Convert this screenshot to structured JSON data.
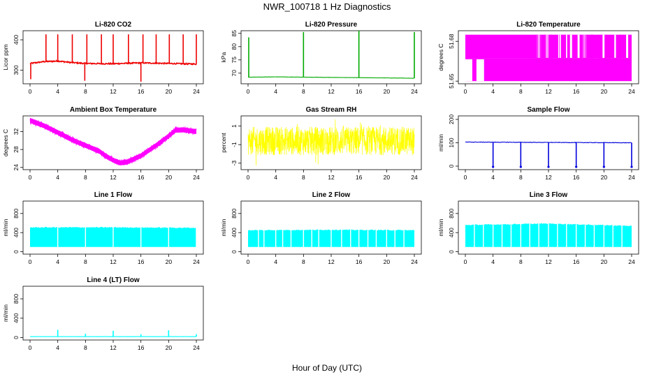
{
  "figure": {
    "title": "NWR_100718  1 Hz Diagnostics",
    "xlabel": "Hour of Day (UTC)"
  },
  "chart_data": [
    {
      "type": "line",
      "title": "Li-820 CO2",
      "ylabel": "Licor ppm",
      "color": "#ee0000",
      "xlim": [
        0,
        24
      ],
      "ylim": [
        255,
        430
      ],
      "xticks": [
        "0",
        "4",
        "8",
        "12",
        "16",
        "20",
        "24"
      ],
      "yticks": [
        "300",
        "400"
      ],
      "baseline": [
        [
          0,
          322
        ],
        [
          2,
          328
        ],
        [
          4,
          330
        ],
        [
          6,
          325
        ],
        [
          8,
          322
        ],
        [
          12,
          321
        ],
        [
          16,
          324
        ],
        [
          20,
          322
        ],
        [
          24,
          320
        ]
      ],
      "spikes": [
        [
          0.1,
          270
        ],
        [
          2.3,
          418
        ],
        [
          4.0,
          418
        ],
        [
          6.1,
          418
        ],
        [
          7.9,
          265
        ],
        [
          8.2,
          418
        ],
        [
          10.3,
          418
        ],
        [
          12.0,
          418
        ],
        [
          14.2,
          418
        ],
        [
          16.0,
          262
        ],
        [
          16.3,
          418
        ],
        [
          18.2,
          418
        ],
        [
          20.1,
          418
        ],
        [
          22.1,
          418
        ],
        [
          24.0,
          418
        ]
      ]
    },
    {
      "type": "line",
      "title": "Li-820 Pressure",
      "ylabel": "kPa",
      "color": "#00aa00",
      "xlim": [
        0,
        24
      ],
      "ylim": [
        66,
        86
      ],
      "xticks": [
        "0",
        "4",
        "8",
        "12",
        "16",
        "20",
        "24"
      ],
      "yticks": [
        "70",
        "75",
        "80",
        "85"
      ],
      "baseline": [
        [
          0,
          68.5
        ],
        [
          4,
          68.6
        ],
        [
          8,
          68.5
        ],
        [
          12,
          68.4
        ],
        [
          16,
          68.3
        ],
        [
          20,
          68.2
        ],
        [
          24,
          68.1
        ]
      ],
      "spikes": [
        [
          0.1,
          83.5
        ],
        [
          8.0,
          85.5
        ],
        [
          16.0,
          86
        ],
        [
          24.0,
          85.5
        ]
      ]
    },
    {
      "type": "area",
      "title": "Li-820 Temperature",
      "ylabel": "degrees C",
      "color": "#ff00ff",
      "xlim": [
        0,
        24
      ],
      "ylim": [
        51.648,
        51.688
      ],
      "xticks": [
        "0",
        "4",
        "8",
        "12",
        "16",
        "20",
        "24"
      ],
      "yticks": [
        "51.65",
        "51.68"
      ],
      "levels": [
        51.65,
        51.667,
        51.685
      ],
      "gaps_low": [
        [
          0,
          1.0
        ],
        [
          1.6,
          2.7
        ]
      ],
      "gaps_high": [
        [
          10.3,
          10.9
        ],
        [
          11.6,
          12.0
        ],
        [
          13.4,
          13.9
        ],
        [
          14.5,
          14.7
        ],
        [
          15.1,
          15.4
        ],
        [
          16.2,
          16.5
        ],
        [
          17.0,
          17.4
        ],
        [
          19.8,
          20.2
        ],
        [
          21.5,
          21.8
        ],
        [
          23.2,
          23.5
        ]
      ]
    },
    {
      "type": "line",
      "title": "Ambient Box Temperature",
      "ylabel": "degrees C",
      "color": "#ff00ff",
      "xlim": [
        0,
        24
      ],
      "ylim": [
        23.5,
        35.5
      ],
      "xticks": [
        "0",
        "4",
        "8",
        "12",
        "16",
        "20",
        "24"
      ],
      "yticks": [
        "24",
        "28",
        "32"
      ],
      "y": [
        34.5,
        33.3,
        31.8,
        30.2,
        28.9,
        27.6,
        26.5,
        25.6,
        25.0,
        25.2,
        26.6,
        28.7,
        31.0,
        32.3,
        32.4,
        32.0
      ],
      "x": [
        0,
        2,
        4,
        6,
        8,
        10,
        11,
        12,
        13,
        14,
        16,
        18,
        20,
        21,
        22,
        24
      ],
      "noise": 0.55
    },
    {
      "type": "line",
      "title": "Gas Stream RH",
      "ylabel": "percent",
      "color": "#ffff00",
      "xlim": [
        0,
        24
      ],
      "ylim": [
        -3.7,
        2.1
      ],
      "xticks": [
        "0",
        "4",
        "8",
        "12",
        "16",
        "20",
        "24"
      ],
      "yticks": [
        "-3",
        "-1",
        "1"
      ],
      "mean": -0.6,
      "noise": 1.4
    },
    {
      "type": "line",
      "title": "Sample Flow",
      "ylabel": "ml/min",
      "color": "#0000dd",
      "xlim": [
        0,
        24
      ],
      "ylim": [
        -15,
        215
      ],
      "xticks": [
        "0",
        "4",
        "8",
        "12",
        "16",
        "20",
        "24"
      ],
      "yticks": [
        "0",
        "100",
        "200"
      ],
      "baseline": [
        [
          0,
          103
        ],
        [
          24,
          100
        ]
      ],
      "spikes": [
        [
          4.0,
          -3
        ],
        [
          8.0,
          -3
        ],
        [
          12.0,
          -3
        ],
        [
          16.0,
          -3
        ],
        [
          20.0,
          -3
        ],
        [
          24.0,
          -3
        ]
      ]
    },
    {
      "type": "area",
      "title": "Line 1 Flow",
      "ylabel": "ml/min",
      "color": "#00ffff",
      "xlim": [
        0,
        24
      ],
      "ylim": [
        -50,
        1060
      ],
      "xticks": [
        "0",
        "4",
        "8",
        "12",
        "16",
        "20",
        "24"
      ],
      "yticks": [
        "0",
        "400",
        "800"
      ],
      "band_low": 100,
      "band_high": [
        [
          0,
          510
        ],
        [
          12,
          510
        ],
        [
          24,
          500
        ]
      ],
      "gaps": [
        4.0,
        8.0,
        12.0,
        16.0,
        20.0,
        24.0
      ]
    },
    {
      "type": "area",
      "title": "Line 2 Flow",
      "ylabel": "ml/min",
      "color": "#00ffff",
      "xlim": [
        0,
        24
      ],
      "ylim": [
        -50,
        1060
      ],
      "xticks": [
        "0",
        "4",
        "8",
        "12",
        "16",
        "20",
        "24"
      ],
      "yticks": [
        "0",
        "400",
        "800"
      ],
      "band_low": 100,
      "band_high": [
        [
          0,
          450
        ],
        [
          12,
          460
        ],
        [
          24,
          450
        ]
      ],
      "gaps": [
        1.5,
        2.3,
        4.0,
        5.0,
        6.2,
        8.0,
        9.2,
        10.2,
        12.0,
        13.5,
        14.8,
        16.0,
        17.3,
        18.5,
        20.0,
        21.2,
        22.5
      ]
    },
    {
      "type": "area",
      "title": "Line 3 Flow",
      "ylabel": "ml/min",
      "color": "#00ffff",
      "xlim": [
        0,
        24
      ],
      "ylim": [
        -50,
        1060
      ],
      "xticks": [
        "0",
        "4",
        "8",
        "12",
        "16",
        "20",
        "24"
      ],
      "yticks": [
        "0",
        "400",
        "800"
      ],
      "band_low": 100,
      "band_high": [
        [
          0,
          560
        ],
        [
          12,
          590
        ],
        [
          24,
          540
        ]
      ],
      "gaps": [
        1.3,
        2.6,
        4.0,
        5.3,
        6.6,
        8.0,
        9.3,
        10.6,
        12.0,
        13.3,
        14.6,
        16.0,
        17.3,
        18.6,
        20.0,
        21.3,
        22.6
      ]
    },
    {
      "type": "line",
      "title": "Line 4 (LT) Flow",
      "ylabel": "ml/min",
      "color": "#00ffff",
      "xlim": [
        0,
        24
      ],
      "ylim": [
        -50,
        1060
      ],
      "xticks": [
        "0",
        "4",
        "8",
        "12",
        "16",
        "20",
        "24"
      ],
      "yticks": [
        "0",
        "400",
        "800"
      ],
      "baseline": [
        [
          0,
          20
        ],
        [
          24,
          20
        ]
      ],
      "spikes": [
        [
          4.0,
          160
        ],
        [
          8.0,
          80
        ],
        [
          12.0,
          140
        ],
        [
          16.0,
          70
        ],
        [
          20.0,
          150
        ],
        [
          24.0,
          70
        ]
      ]
    }
  ]
}
